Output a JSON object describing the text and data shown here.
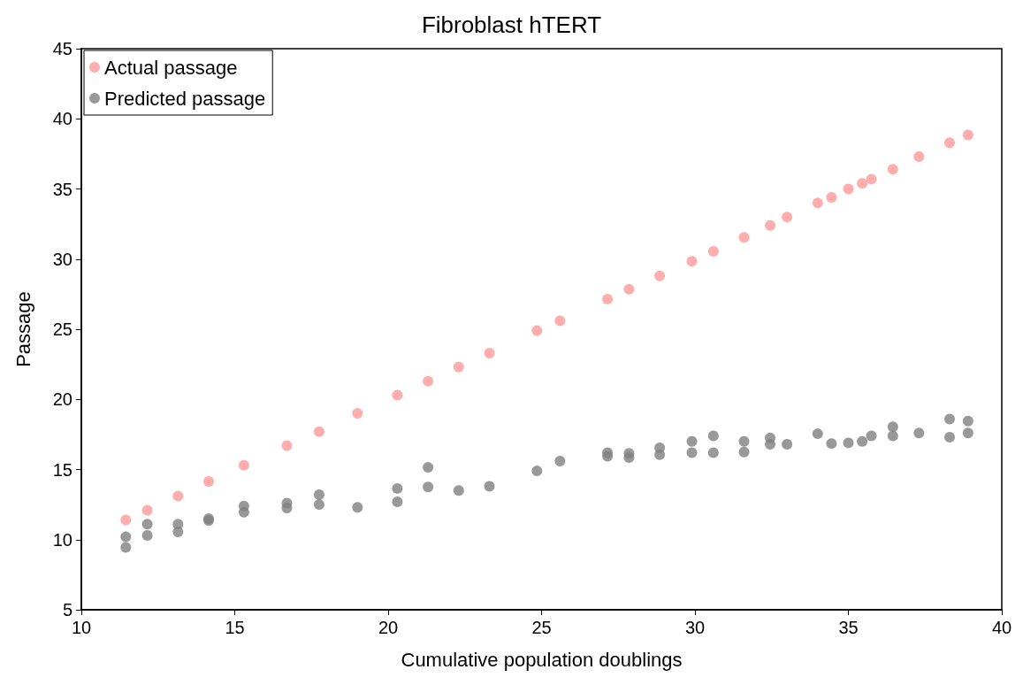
{
  "chart_data": {
    "type": "scatter",
    "title": "Fibroblast hTERT",
    "xlabel": "Cumulative population doublings",
    "ylabel": "Passage",
    "xlim": [
      10,
      40
    ],
    "xticks": [
      10,
      15,
      20,
      25,
      30,
      35,
      40
    ],
    "ylim": [
      5,
      45
    ],
    "yticks": [
      5,
      10,
      15,
      20,
      25,
      30,
      35,
      40,
      45
    ],
    "grid": false,
    "legend": "top left",
    "marker": "circle",
    "series": [
      {
        "name": "Actual passage",
        "color": "#ff9999",
        "x": [
          11.45,
          12.15,
          13.15,
          14.15,
          15.3,
          16.7,
          17.75,
          19.0,
          20.3,
          21.3,
          22.3,
          23.3,
          24.85,
          25.6,
          27.15,
          27.85,
          28.85,
          29.9,
          30.6,
          31.6,
          32.45,
          33.0,
          34.0,
          34.45,
          35.0,
          35.45,
          35.75,
          36.45,
          37.3,
          38.3,
          38.9
        ],
        "values": [
          11.4,
          12.1,
          13.1,
          14.15,
          15.3,
          16.7,
          17.7,
          19.0,
          20.3,
          21.3,
          22.3,
          23.3,
          24.9,
          25.6,
          27.15,
          27.85,
          28.8,
          29.85,
          30.55,
          31.55,
          32.4,
          33.0,
          34.0,
          34.4,
          35.0,
          35.4,
          35.7,
          36.4,
          37.3,
          38.3,
          38.85
        ]
      },
      {
        "name": "Predicted passage",
        "color": "#808080",
        "x": [
          11.45,
          11.45,
          12.15,
          12.15,
          13.15,
          13.15,
          14.15,
          14.15,
          15.3,
          15.3,
          16.7,
          16.7,
          17.75,
          17.75,
          19.0,
          20.3,
          20.3,
          21.3,
          21.3,
          22.3,
          23.3,
          24.85,
          25.6,
          27.15,
          27.15,
          27.85,
          27.85,
          28.85,
          28.85,
          29.9,
          29.9,
          30.6,
          30.6,
          31.6,
          31.6,
          32.45,
          32.45,
          33.0,
          34.0,
          34.45,
          35.0,
          35.45,
          35.75,
          36.45,
          36.45,
          37.3,
          38.3,
          38.3,
          38.9,
          38.9
        ],
        "values": [
          10.2,
          9.45,
          11.1,
          10.3,
          11.1,
          10.55,
          11.5,
          11.35,
          12.4,
          11.95,
          12.6,
          12.25,
          13.2,
          12.5,
          12.3,
          13.65,
          12.7,
          15.15,
          13.75,
          13.5,
          13.8,
          14.9,
          15.6,
          16.2,
          15.95,
          16.15,
          15.85,
          16.55,
          16.05,
          17.0,
          16.2,
          17.4,
          16.2,
          17.0,
          16.25,
          17.25,
          16.8,
          16.8,
          17.55,
          16.85,
          16.9,
          17.0,
          17.4,
          18.05,
          17.4,
          17.6,
          18.6,
          17.3,
          18.45,
          17.6
        ]
      }
    ]
  }
}
